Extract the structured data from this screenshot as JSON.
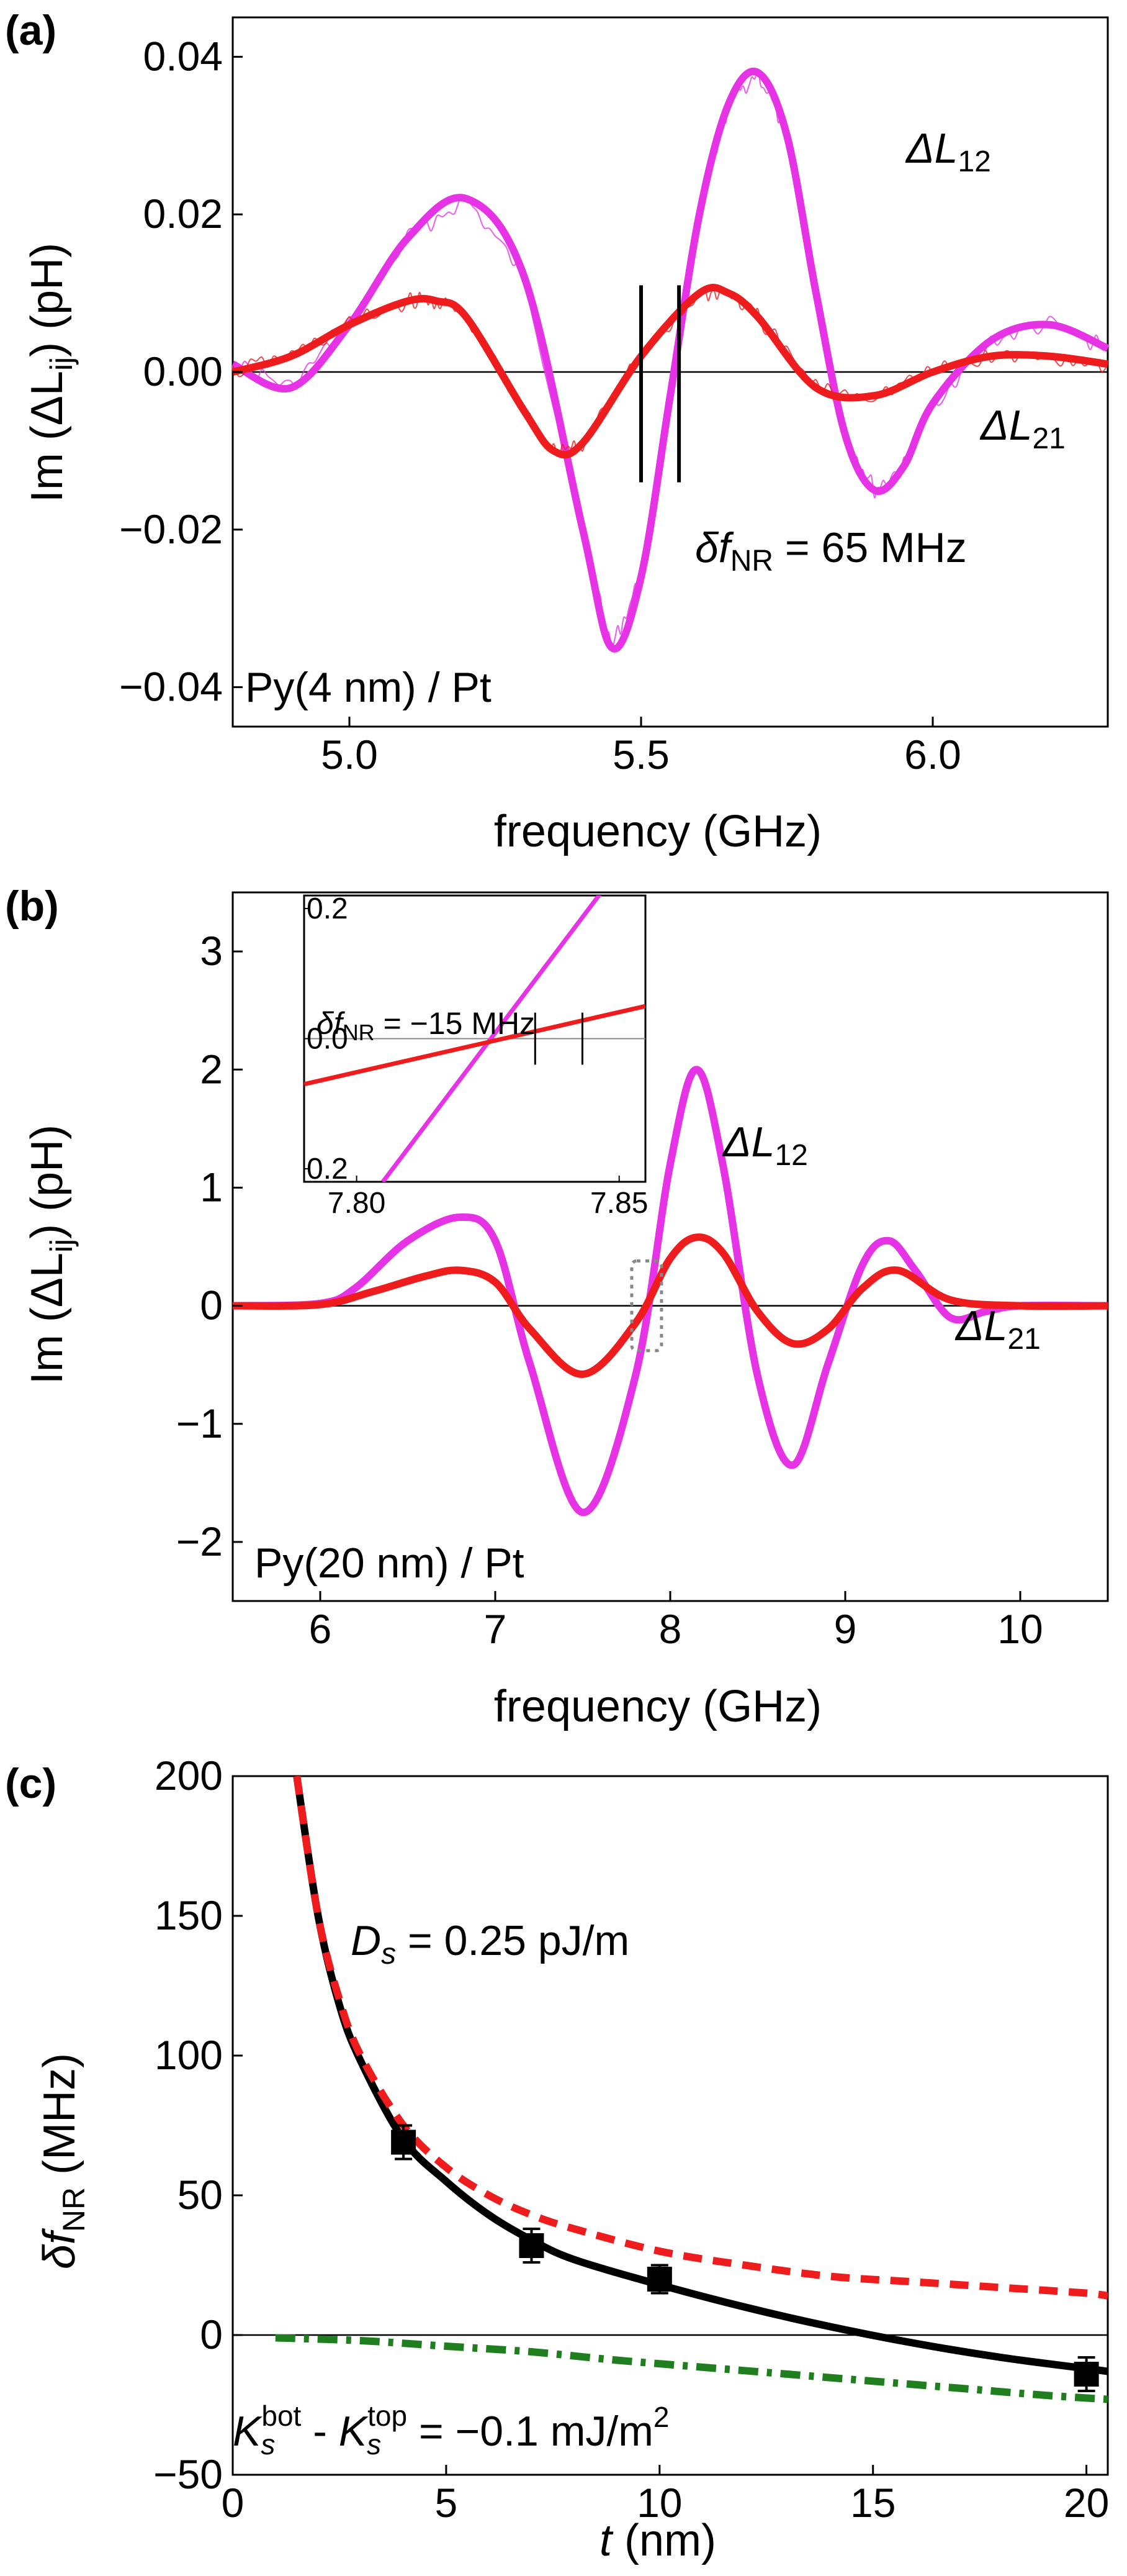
{
  "colors": {
    "magenta": "#e633e6",
    "red": "#ee1c1c",
    "red_noisy": "#f03a10",
    "black": "#000000",
    "green": "#1f7f1f",
    "red_dashed": "#ee1c1c",
    "grid_gray": "#888888"
  },
  "chart_data": [
    {
      "panel_label": "(a)",
      "type": "line",
      "xlabel": "frequency (GHz)",
      "ylabel": "Im (ΔL",
      "ylabel_sub": "ij",
      "ylabel_tail": ") (pH)",
      "xlim": [
        4.8,
        6.3
      ],
      "ylim": [
        -0.045,
        0.045
      ],
      "x_ticks": [
        5.0,
        5.5,
        6.0
      ],
      "x_tick_labels": [
        "5.0",
        "5.5",
        "6.0"
      ],
      "y_ticks": [
        -0.04,
        -0.02,
        0.0,
        0.02,
        0.04
      ],
      "y_tick_labels": [
        "−0.04",
        "−0.02",
        "0.00",
        "0.02",
        "0.04"
      ],
      "zero_line": true,
      "sample_label": "Py(4 nm) / Pt",
      "annotation_prefix": "δf",
      "annotation_sub": "NR",
      "annotation_value": " = 65 MHz",
      "series": [
        {
          "name": "ΔL12",
          "label_main": "ΔL",
          "label_sub": "12",
          "color": "magenta",
          "x": [
            4.8,
            4.9,
            5.0,
            5.1,
            5.2,
            5.3,
            5.4,
            5.45,
            5.5,
            5.55,
            5.6,
            5.65,
            5.7,
            5.75,
            5.8,
            5.85,
            5.9,
            5.95,
            6.0,
            6.1,
            6.2,
            6.3
          ],
          "y": [
            0.001,
            -0.002,
            0.006,
            0.017,
            0.022,
            0.012,
            -0.02,
            -0.035,
            -0.026,
            -0.003,
            0.02,
            0.034,
            0.038,
            0.03,
            0.01,
            -0.008,
            -0.015,
            -0.012,
            -0.004,
            0.004,
            0.006,
            0.003
          ]
        },
        {
          "name": "ΔL21",
          "label_main": "ΔL",
          "label_sub": "21",
          "color": "red",
          "x": [
            4.8,
            4.9,
            5.0,
            5.1,
            5.15,
            5.2,
            5.3,
            5.35,
            5.4,
            5.5,
            5.6,
            5.65,
            5.7,
            5.8,
            5.9,
            6.0,
            6.1,
            6.2,
            6.3
          ],
          "y": [
            0.0,
            0.002,
            0.006,
            0.009,
            0.009,
            0.007,
            -0.005,
            -0.01,
            -0.009,
            0.002,
            0.01,
            0.01,
            0.007,
            -0.002,
            -0.003,
            0.0,
            0.002,
            0.002,
            0.001
          ]
        }
      ],
      "markers_x": [
        5.5,
        5.565
      ]
    },
    {
      "panel_label": "(b)",
      "type": "line",
      "xlabel": "frequency (GHz)",
      "ylabel": "Im (ΔL",
      "ylabel_sub": "ij",
      "ylabel_tail": ") (pH)",
      "xlim": [
        5.5,
        10.5
      ],
      "ylim": [
        -2.5,
        3.5
      ],
      "x_ticks": [
        6,
        7,
        8,
        9,
        10
      ],
      "x_tick_labels": [
        "6",
        "7",
        "8",
        "9",
        "10"
      ],
      "y_ticks": [
        -2,
        -1,
        0,
        1,
        2,
        3
      ],
      "y_tick_labels": [
        "−2",
        "−1",
        "0",
        "1",
        "2",
        "3"
      ],
      "zero_line": true,
      "sample_label": "Py(20 nm) / Pt",
      "series": [
        {
          "name": "ΔL12",
          "label_main": "ΔL",
          "label_sub": "12",
          "color": "magenta",
          "x": [
            5.5,
            6.0,
            6.2,
            6.5,
            6.8,
            7.0,
            7.2,
            7.5,
            7.8,
            8.0,
            8.15,
            8.3,
            8.5,
            8.7,
            8.9,
            9.1,
            9.25,
            9.4,
            9.6,
            9.8,
            10.0,
            10.5
          ],
          "y": [
            0.0,
            0.02,
            0.15,
            0.55,
            0.75,
            0.55,
            -0.5,
            -1.75,
            -0.6,
            1.2,
            2.0,
            1.2,
            -0.6,
            -1.35,
            -0.5,
            0.35,
            0.55,
            0.3,
            -0.1,
            -0.05,
            0.0,
            0.0
          ]
        },
        {
          "name": "ΔL21",
          "label_main": "ΔL",
          "label_sub": "21",
          "color": "red",
          "x": [
            5.5,
            6.0,
            6.3,
            6.6,
            6.8,
            7.0,
            7.2,
            7.5,
            7.8,
            8.0,
            8.15,
            8.3,
            8.5,
            8.7,
            8.9,
            9.1,
            9.3,
            9.6,
            10.0,
            10.5
          ],
          "y": [
            0.0,
            0.01,
            0.12,
            0.25,
            0.3,
            0.2,
            -0.2,
            -0.58,
            -0.15,
            0.4,
            0.58,
            0.45,
            -0.05,
            -0.32,
            -0.2,
            0.15,
            0.3,
            0.05,
            0.0,
            0.0
          ]
        }
      ],
      "inset": {
        "xlim": [
          7.79,
          7.855
        ],
        "ylim": [
          -0.22,
          0.22
        ],
        "x_ticks": [
          7.8,
          7.85
        ],
        "x_tick_labels": [
          "7.80",
          "7.85"
        ],
        "y_ticks": [
          -0.2,
          0.0,
          0.2
        ],
        "y_tick_labels": [
          "0.2",
          "0.0",
          "0.2"
        ],
        "annotation_prefix": "δf",
        "annotation_sub": "NR",
        "annotation_value": " = −15 MHz",
        "series": [
          {
            "name": "ΔL12",
            "color": "magenta",
            "x": [
              7.805,
              7.848
            ],
            "y": [
              -0.22,
              0.24
            ]
          },
          {
            "name": "ΔL21",
            "color": "red",
            "x": [
              7.79,
              7.855
            ],
            "y": [
              -0.07,
              0.05
            ]
          }
        ],
        "markers_x": [
          7.834,
          7.843
        ]
      }
    },
    {
      "panel_label": "(c)",
      "type": "line",
      "xlabel": "t",
      "xlabel_tail": " (nm)",
      "ylabel": "δf",
      "ylabel_sub": "NR",
      "ylabel_tail": " (MHz)",
      "xlim": [
        0,
        20.5
      ],
      "ylim": [
        -50,
        200
      ],
      "x_ticks": [
        0,
        5,
        10,
        15,
        20
      ],
      "x_tick_labels": [
        "0",
        "5",
        "10",
        "15",
        "20"
      ],
      "y_ticks": [
        -50,
        0,
        50,
        100,
        150,
        200
      ],
      "y_tick_labels": [
        "−50",
        "0",
        "50",
        "100",
        "150",
        "200"
      ],
      "zero_line": true,
      "points": {
        "x": [
          4,
          7,
          10,
          20
        ],
        "y": [
          69,
          32,
          20,
          -14
        ],
        "err": [
          6,
          6,
          5,
          6
        ]
      },
      "curves": [
        {
          "name": "fit",
          "color": "black",
          "style": "solid",
          "x": [
            1.5,
            2,
            2.5,
            3,
            4,
            5,
            6,
            7,
            8,
            10,
            12,
            14,
            16,
            18,
            20,
            20.5
          ],
          "y": [
            200,
            150,
            118,
            98,
            70,
            55,
            43,
            34,
            27,
            18,
            10,
            3,
            -3,
            -8,
            -12,
            -13
          ]
        },
        {
          "name": "Ds",
          "color": "red_dashed",
          "style": "dashed",
          "x": [
            1.5,
            2,
            2.5,
            3,
            4,
            5,
            6,
            7,
            8,
            10,
            12,
            14,
            16,
            18,
            20,
            20.5
          ],
          "y": [
            200,
            150,
            120,
            100,
            75,
            60,
            50,
            43,
            38,
            30,
            25,
            21,
            19,
            17,
            15,
            14
          ]
        },
        {
          "name": "Ks",
          "color": "green",
          "style": "dashdot",
          "x": [
            1,
            3,
            5,
            7,
            9,
            11,
            13,
            15,
            17,
            19,
            20.5
          ],
          "y": [
            -1,
            -2,
            -4,
            -6,
            -9,
            -11.5,
            -14,
            -16.5,
            -19,
            -21.5,
            -23
          ]
        }
      ],
      "ds_label_main": "D",
      "ds_label_sub": "s",
      "ds_label_value": " = 0.25 pJ/m",
      "ks_label_k1": "K",
      "ks_label_k1_sub": "s",
      "ks_label_k1_sup": "bot",
      "ks_label_mid": " - ",
      "ks_label_k2": "K",
      "ks_label_k2_sub": "s",
      "ks_label_k2_sup": "top",
      "ks_label_value": "   = −0.1 mJ/m",
      "ks_label_unit_sup": "2"
    }
  ]
}
